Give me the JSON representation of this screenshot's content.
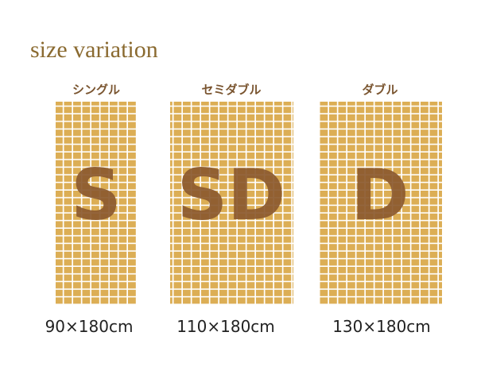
{
  "title": "size variation",
  "items": [
    {
      "name": "シングル",
      "letter": "S",
      "size": "90×180cm"
    },
    {
      "name": "セミダブル",
      "letter": "SD",
      "size": "110×180cm"
    },
    {
      "name": "ダブル",
      "letter": "D",
      "size": "130×180cm"
    }
  ]
}
